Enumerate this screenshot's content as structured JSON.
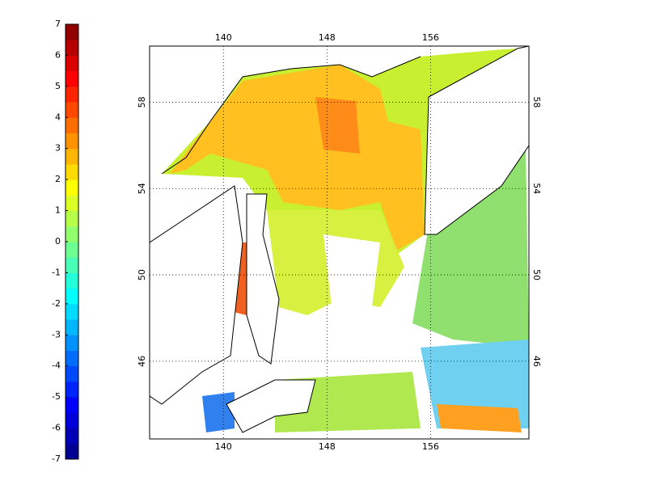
{
  "colorbar": {
    "range": [
      -7,
      7
    ],
    "ticks": [
      -7,
      -6,
      -5,
      -4,
      -3,
      -2,
      -1,
      0,
      1,
      2,
      3,
      4,
      5,
      6,
      7
    ]
  },
  "map": {
    "lonlim": [
      134.3,
      163.6
    ],
    "latlim": [
      42.4,
      60.6
    ],
    "lon_ticks": [
      140,
      148,
      156
    ],
    "lat_ticks": [
      46,
      50,
      54,
      58
    ]
  }
}
